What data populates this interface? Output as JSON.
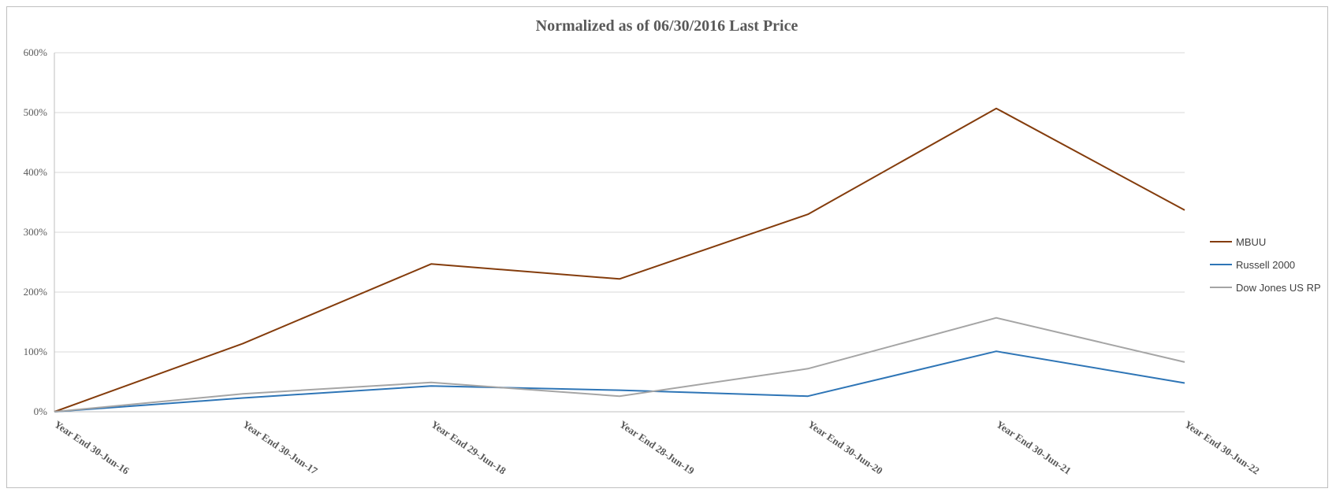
{
  "chart_data": {
    "type": "line",
    "title": "Normalized as of 06/30/2016 Last Price",
    "categories": [
      "Year End 30-Jun-16",
      "Year End 30-Jun-17",
      "Year End 29-Jun-18",
      "Year End 28-Jun-19",
      "Year End 30-Jun-20",
      "Year End 30-Jun-21",
      "Year End 30-Jun-22"
    ],
    "ylim": [
      0,
      600
    ],
    "yticks": [
      0,
      100,
      200,
      300,
      400,
      500,
      600
    ],
    "ytick_labels": [
      "0%",
      "100%",
      "200%",
      "300%",
      "400%",
      "500%",
      "600%"
    ],
    "grid": true,
    "legend_position": "right",
    "series": [
      {
        "name": "MBUU",
        "color": "#843c0c",
        "values": [
          0,
          114,
          247,
          222,
          330,
          507,
          337
        ]
      },
      {
        "name": "Russell 2000",
        "color": "#2e75b6",
        "values": [
          0,
          23,
          43,
          36,
          26,
          101,
          48
        ]
      },
      {
        "name": "Dow Jones US RP",
        "color": "#a5a5a5",
        "values": [
          0,
          30,
          49,
          26,
          72,
          157,
          83
        ]
      }
    ]
  }
}
